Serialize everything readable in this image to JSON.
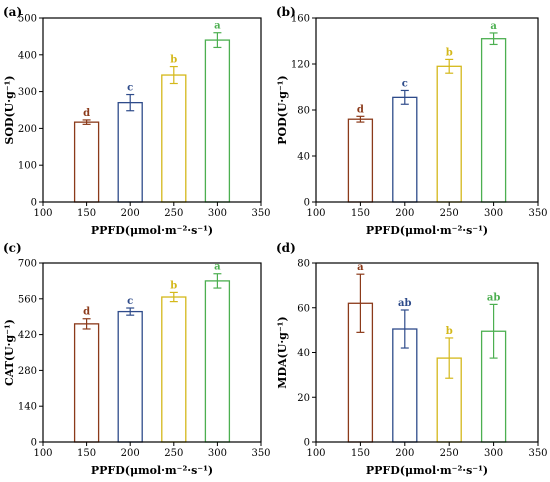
{
  "chart_data": [
    {
      "type": "bar",
      "panel_label": "(a)",
      "xlabel": "PPFD(μmol·m⁻²·s⁻¹)",
      "ylabel": "SOD(U·g⁻¹)",
      "xlim": [
        100,
        350
      ],
      "xticks": [
        100,
        150,
        200,
        250,
        300,
        350
      ],
      "ylim": [
        0,
        500
      ],
      "yticks": [
        0,
        100,
        200,
        300,
        400,
        500
      ],
      "x": [
        150,
        200,
        250,
        300
      ],
      "values": [
        217,
        270,
        345,
        440
      ],
      "errors": [
        6,
        22,
        23,
        20
      ],
      "significance": [
        "d",
        "c",
        "b",
        "a"
      ],
      "colors": [
        "#8b3a1a",
        "#2e4b8a",
        "#d4b81a",
        "#4caf50"
      ]
    },
    {
      "type": "bar",
      "panel_label": "(b)",
      "xlabel": "PPFD(μmol·m⁻²·s⁻¹)",
      "ylabel": "POD(U·g⁻¹)",
      "xlim": [
        100,
        350
      ],
      "xticks": [
        100,
        150,
        200,
        250,
        300,
        350
      ],
      "ylim": [
        0,
        160
      ],
      "yticks": [
        0,
        40,
        80,
        120,
        160
      ],
      "x": [
        150,
        200,
        250,
        300
      ],
      "values": [
        72,
        91,
        118,
        142
      ],
      "errors": [
        2.5,
        6,
        6,
        5
      ],
      "significance": [
        "d",
        "c",
        "b",
        "a"
      ],
      "colors": [
        "#8b3a1a",
        "#2e4b8a",
        "#d4b81a",
        "#4caf50"
      ]
    },
    {
      "type": "bar",
      "panel_label": "(c)",
      "xlabel": "PPFD(μmol·m⁻²·s⁻¹)",
      "ylabel": "CAT(U·g⁻¹)",
      "xlim": [
        100,
        350
      ],
      "xticks": [
        100,
        150,
        200,
        250,
        300,
        350
      ],
      "ylim": [
        0,
        700
      ],
      "yticks": [
        0,
        140,
        280,
        420,
        560,
        700
      ],
      "x": [
        150,
        200,
        250,
        300
      ],
      "values": [
        462,
        510,
        567,
        630
      ],
      "errors": [
        20,
        14,
        18,
        28
      ],
      "significance": [
        "d",
        "c",
        "b",
        "a"
      ],
      "colors": [
        "#8b3a1a",
        "#2e4b8a",
        "#d4b81a",
        "#4caf50"
      ]
    },
    {
      "type": "bar",
      "panel_label": "(d)",
      "xlabel": "PPFD(μmol·m⁻²·s⁻¹)",
      "ylabel": "MDA(U·g⁻¹)",
      "xlim": [
        100,
        350
      ],
      "xticks": [
        100,
        150,
        200,
        250,
        300,
        350
      ],
      "ylim": [
        0,
        80
      ],
      "yticks": [
        0,
        20,
        40,
        60,
        80
      ],
      "x": [
        150,
        200,
        250,
        300
      ],
      "values": [
        62,
        50.5,
        37.5,
        49.5
      ],
      "errors": [
        13,
        8.5,
        9,
        12
      ],
      "significance": [
        "a",
        "ab",
        "b",
        "ab"
      ],
      "colors": [
        "#8b3a1a",
        "#2e4b8a",
        "#d4b81a",
        "#4caf50"
      ]
    }
  ]
}
